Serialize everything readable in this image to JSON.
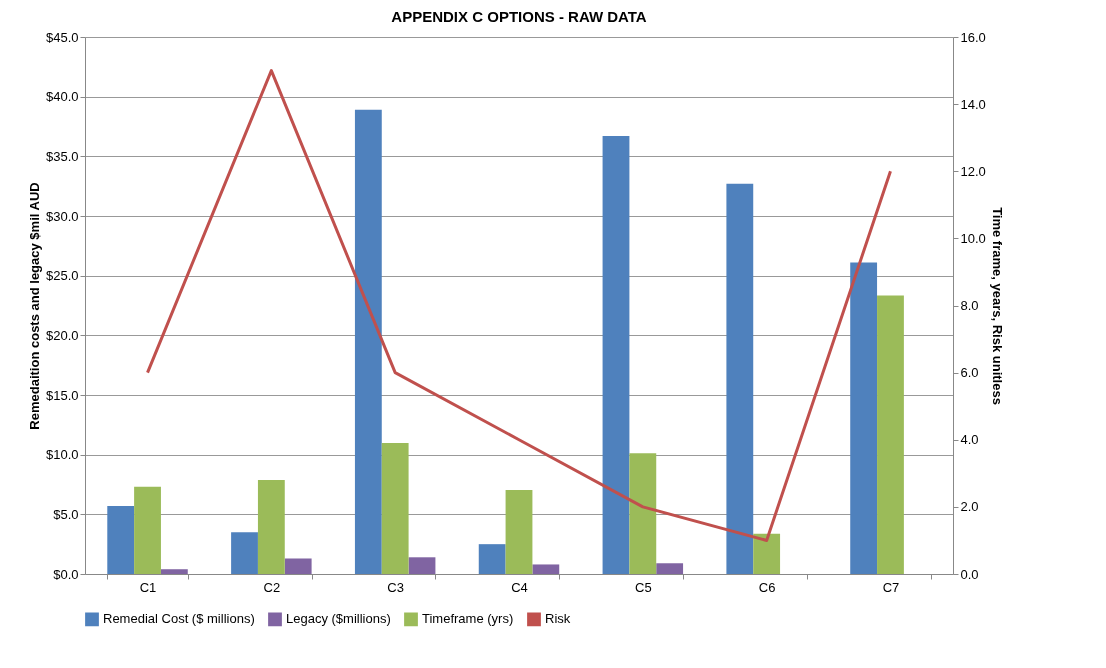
{
  "chart_data": {
    "type": "bar",
    "title": "APPENDIX C OPTIONS - RAW DATA",
    "ylabel": "Remedaition costs and legacy $mil AUD",
    "y2label": "Time frame, years, Risk unitless",
    "categories": [
      "C1",
      "C2",
      "C3",
      "C4",
      "C5",
      "C6",
      "C7"
    ],
    "series": [
      {
        "name": "Remedial Cost ($ millions)",
        "color": "#4f81bd",
        "values": [
          5.7,
          3.5,
          38.9,
          2.5,
          36.7,
          32.7,
          26.1
        ]
      },
      {
        "name": "Legacy ($millions)",
        "color": "#8064a2",
        "values": [
          0.4,
          1.3,
          1.4,
          0.8,
          0.9,
          null,
          null
        ]
      },
      {
        "name": "Timeframe (yrs)",
        "color": "#9bbb59",
        "axis": "y2",
        "values": [
          2.6,
          2.8,
          3.9,
          2.5,
          3.6,
          1.2,
          8.3
        ]
      },
      {
        "name": "Risk",
        "type": "line",
        "color": "#c0504d",
        "axis": "y2",
        "values": [
          6.0,
          15.0,
          6.0,
          4.0,
          2.0,
          1.0,
          12.0
        ]
      }
    ],
    "ylim": [
      0,
      45
    ],
    "yticks": [
      {
        "value": 0,
        "label": "$0.0"
      },
      {
        "value": 5,
        "label": "$5.0"
      },
      {
        "value": 10,
        "label": "$10.0"
      },
      {
        "value": 15,
        "label": "$15.0"
      },
      {
        "value": 20,
        "label": "$20.0"
      },
      {
        "value": 25,
        "label": "$25.0"
      },
      {
        "value": 30,
        "label": "$30.0"
      },
      {
        "value": 35,
        "label": "$35.0"
      },
      {
        "value": 40,
        "label": "$40.0"
      },
      {
        "value": 45,
        "label": "$45.0"
      }
    ],
    "y2lim": [
      0,
      16
    ],
    "y2ticks": [
      {
        "value": 0,
        "label": "0.0"
      },
      {
        "value": 2,
        "label": "2.0"
      },
      {
        "value": 4,
        "label": "4.0"
      },
      {
        "value": 6,
        "label": "6.0"
      },
      {
        "value": 8,
        "label": "8.0"
      },
      {
        "value": 10,
        "label": "10.0"
      },
      {
        "value": 12,
        "label": "12.0"
      },
      {
        "value": 14,
        "label": "14.0"
      },
      {
        "value": 16,
        "label": "16.0"
      }
    ],
    "grid": "y",
    "legend": "bottom",
    "marker": "none",
    "line_style": "solid"
  }
}
